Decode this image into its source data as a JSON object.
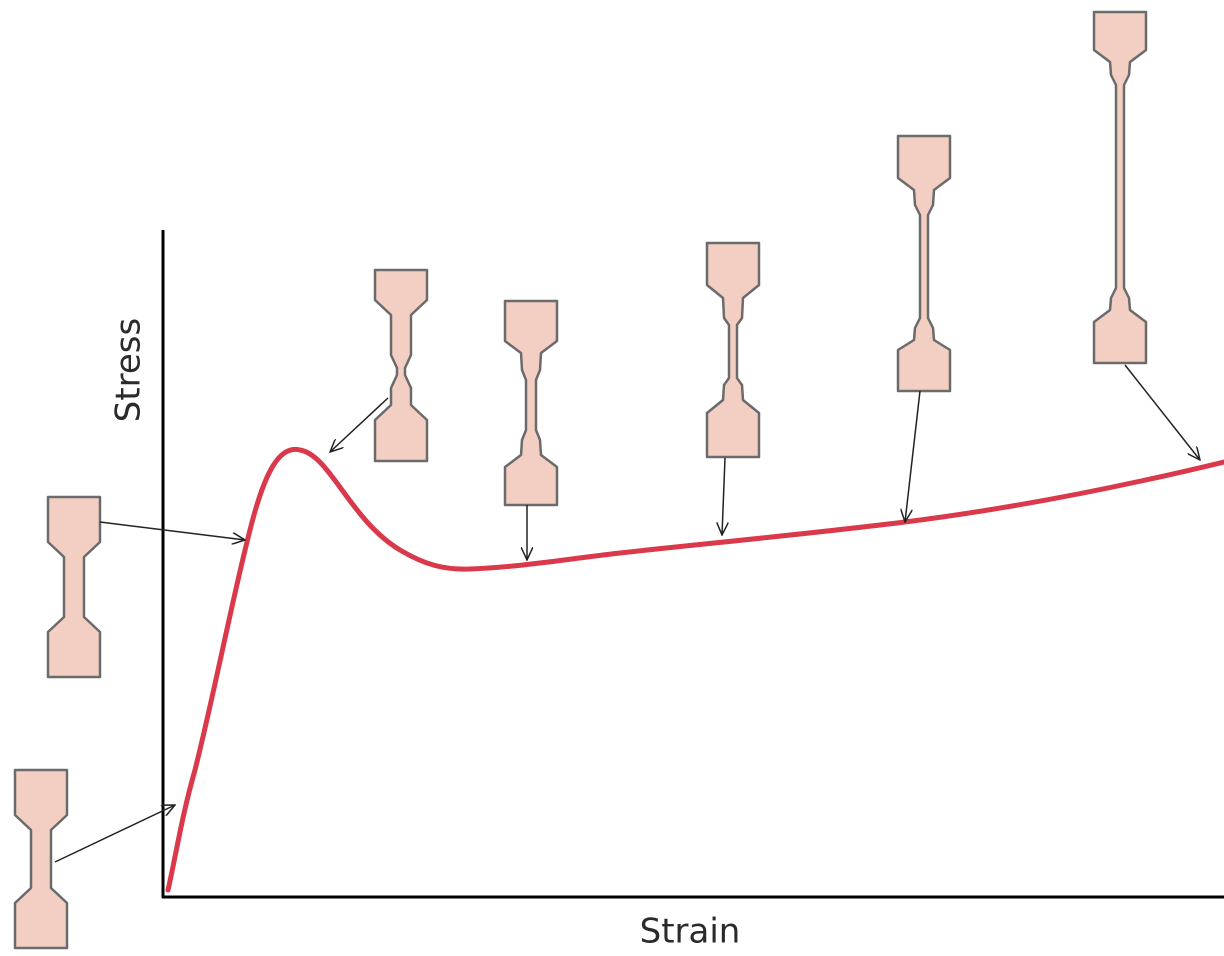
{
  "axes": {
    "y_label": "Stress",
    "x_label": "Strain"
  }
}
